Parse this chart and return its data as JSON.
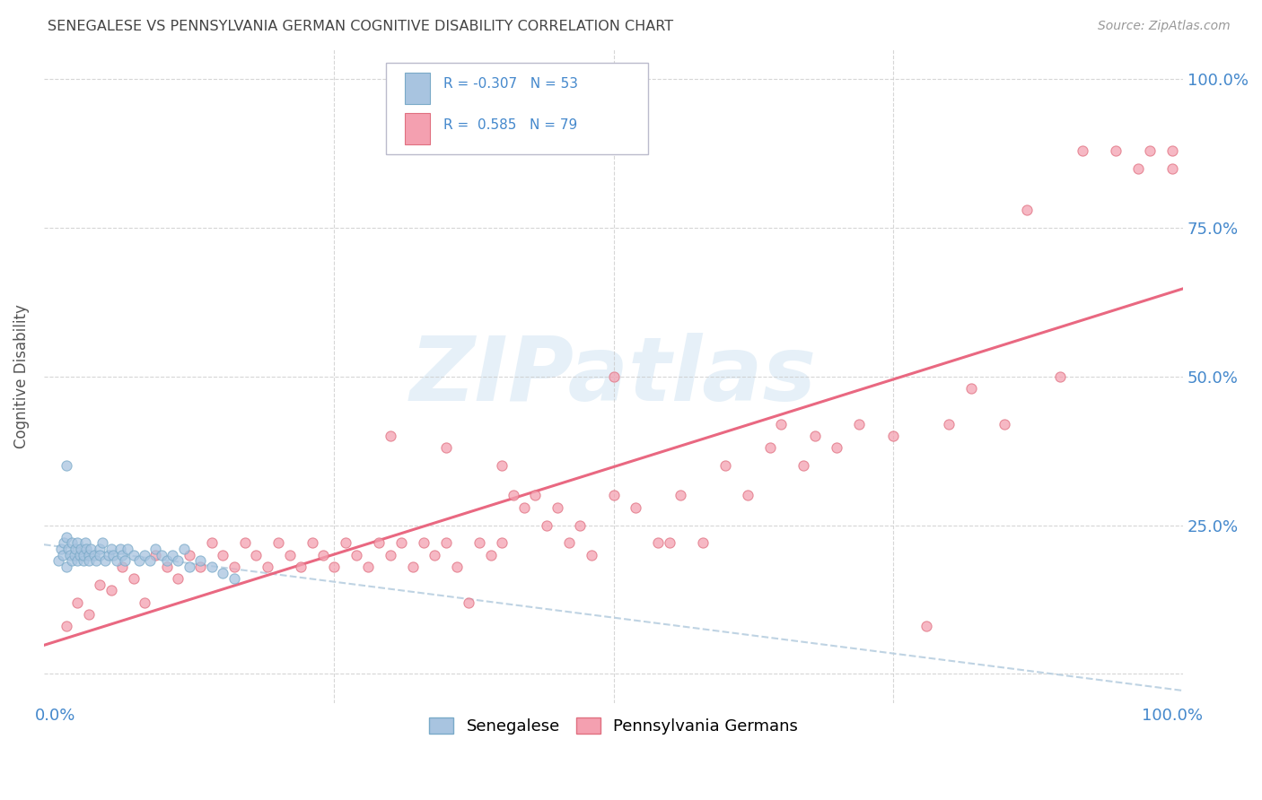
{
  "title": "SENEGALESE VS PENNSYLVANIA GERMAN COGNITIVE DISABILITY CORRELATION CHART",
  "source": "Source: ZipAtlas.com",
  "ylabel": "Cognitive Disability",
  "legend_label1": "Senegalese",
  "legend_label2": "Pennsylvania Germans",
  "r1": "-0.307",
  "n1": "53",
  "r2": "0.585",
  "n2": "79",
  "color_senegalese": "#a8c4e0",
  "color_senegalese_edge": "#7aaac8",
  "color_penn_german": "#f4a0b0",
  "color_penn_german_edge": "#e07080",
  "color_trendline1": "#b8cfe0",
  "color_trendline2": "#e8607a",
  "color_axis_labels": "#4488cc",
  "color_title": "#444444",
  "color_source": "#999999",
  "color_grid": "#cccccc",
  "background_color": "#ffffff",
  "watermark_color": "#c8dff0",
  "watermark_alpha": 0.45,
  "ylim_min": -5,
  "ylim_max": 105,
  "xlim_min": -1,
  "xlim_max": 101
}
